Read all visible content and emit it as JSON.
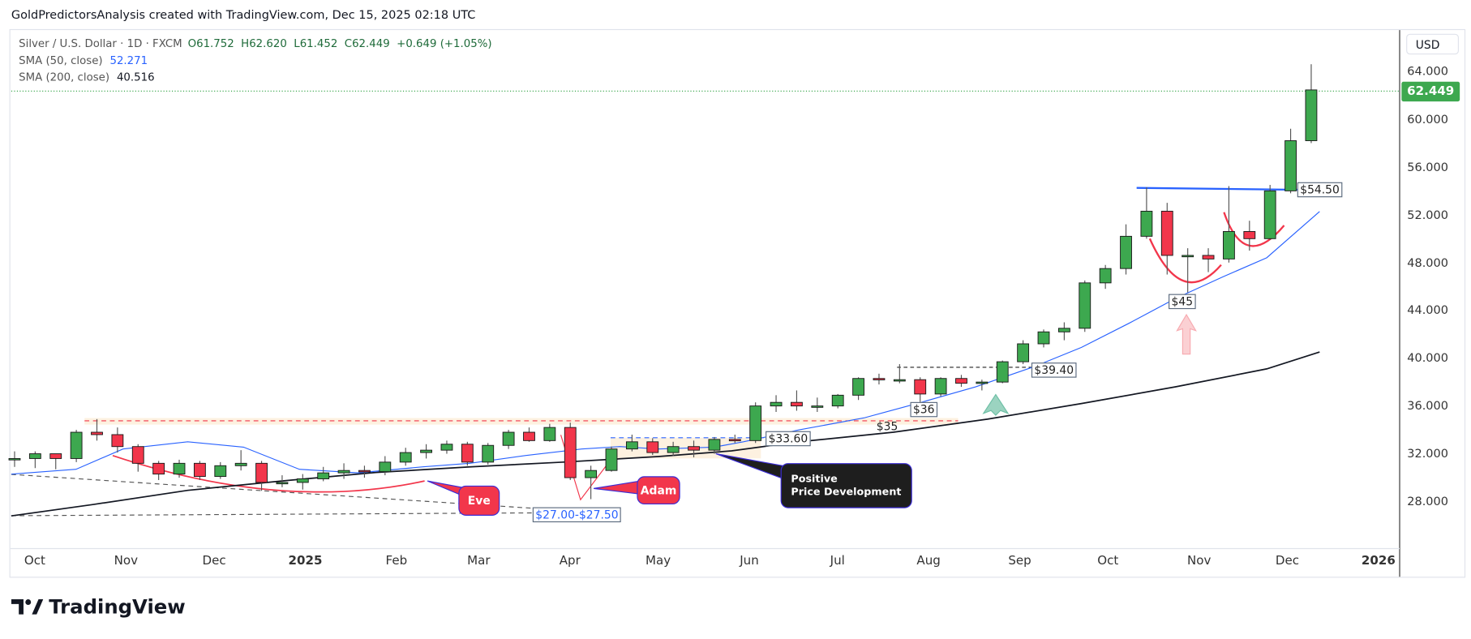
{
  "credit": "GoldPredictorsAnalysis created with TradingView.com, Dec 15, 2025 02:18 UTC",
  "legend": {
    "symbol": "Silver / U.S. Dollar · 1D · FXCM",
    "ohlc": "O61.752  H62.620  L61.452  C62.449  +0.649 (+1.05%)",
    "sma50_label": "SMA (50, close)",
    "sma50_value": "52.271",
    "sma200_label": "SMA (200, close)",
    "sma200_value": "40.516"
  },
  "currency": "USD",
  "last_price": "62.449",
  "colors": {
    "up": "#3da84f",
    "down": "#f2364b",
    "sma50": "#2962ff",
    "sma200": "#131722",
    "last_price": "#3da84f"
  },
  "chart_data": {
    "type": "candlestick",
    "interval_shown": "1D (approximated as weekly OHLC)",
    "ylim": [
      25,
      66
    ],
    "y_ticks": [
      "64.000",
      "60.000",
      "56.000",
      "52.000",
      "48.000",
      "44.000",
      "40.000",
      "36.000",
      "32.000",
      "28.000"
    ],
    "y_tick_values": [
      64,
      60,
      56,
      52,
      48,
      44,
      40,
      36,
      32,
      28
    ],
    "x_ticks": [
      {
        "label": "Oct",
        "date": "2024-10-01"
      },
      {
        "label": "Nov",
        "date": "2024-11-01"
      },
      {
        "label": "Dec",
        "date": "2024-12-01"
      },
      {
        "label": "2025",
        "date": "2025-01-01",
        "bold": true
      },
      {
        "label": "Feb",
        "date": "2025-02-01"
      },
      {
        "label": "Mar",
        "date": "2025-03-01"
      },
      {
        "label": "Apr",
        "date": "2025-04-01"
      },
      {
        "label": "May",
        "date": "2025-05-01"
      },
      {
        "label": "Jun",
        "date": "2025-06-01"
      },
      {
        "label": "Jul",
        "date": "2025-07-01"
      },
      {
        "label": "Aug",
        "date": "2025-08-01"
      },
      {
        "label": "Sep",
        "date": "2025-09-01"
      },
      {
        "label": "Oct",
        "date": "2025-10-01"
      },
      {
        "label": "Nov",
        "date": "2025-11-01"
      },
      {
        "label": "Dec",
        "date": "2025-12-01"
      },
      {
        "label": "2026",
        "date": "2026-01-01",
        "bold": true
      }
    ],
    "candles": [
      [
        "2024-09-27",
        31.5,
        32.2,
        30.9,
        31.6
      ],
      [
        "2024-10-04",
        31.6,
        32.2,
        30.8,
        32.0
      ],
      [
        "2024-10-11",
        32.0,
        32.0,
        30.7,
        31.6
      ],
      [
        "2024-10-18",
        31.6,
        34.0,
        31.3,
        33.8
      ],
      [
        "2024-10-25",
        33.8,
        34.9,
        33.1,
        33.6
      ],
      [
        "2024-11-01",
        33.6,
        34.2,
        32.1,
        32.6
      ],
      [
        "2024-11-08",
        32.6,
        32.8,
        30.5,
        31.2
      ],
      [
        "2024-11-15",
        31.2,
        31.4,
        29.8,
        30.3
      ],
      [
        "2024-11-22",
        30.3,
        31.5,
        30.0,
        31.2
      ],
      [
        "2024-11-29",
        31.2,
        31.4,
        29.8,
        30.1
      ],
      [
        "2024-12-06",
        30.1,
        31.3,
        29.9,
        31.0
      ],
      [
        "2024-12-13",
        31.0,
        32.3,
        30.6,
        31.2
      ],
      [
        "2024-12-20",
        31.2,
        31.4,
        28.9,
        29.6
      ],
      [
        "2024-12-27",
        29.6,
        30.2,
        29.2,
        29.6
      ],
      [
        "2025-01-03",
        29.6,
        30.3,
        29.0,
        29.9
      ],
      [
        "2025-01-10",
        29.9,
        30.9,
        29.7,
        30.4
      ],
      [
        "2025-01-17",
        30.4,
        31.2,
        29.9,
        30.6
      ],
      [
        "2025-01-24",
        30.6,
        31.0,
        30.0,
        30.5
      ],
      [
        "2025-01-31",
        30.5,
        31.8,
        30.2,
        31.3
      ],
      [
        "2025-02-07",
        31.3,
        32.5,
        31.0,
        32.1
      ],
      [
        "2025-02-14",
        32.1,
        32.8,
        31.6,
        32.3
      ],
      [
        "2025-02-21",
        32.3,
        33.1,
        32.0,
        32.8
      ],
      [
        "2025-02-28",
        32.8,
        33.0,
        31.0,
        31.3
      ],
      [
        "2025-03-07",
        31.3,
        32.9,
        31.1,
        32.7
      ],
      [
        "2025-03-14",
        32.7,
        34.0,
        32.4,
        33.8
      ],
      [
        "2025-03-21",
        33.8,
        34.2,
        33.0,
        33.1
      ],
      [
        "2025-03-28",
        33.1,
        34.5,
        33.0,
        34.2
      ],
      [
        "2025-04-04",
        34.2,
        34.6,
        29.8,
        30.0
      ],
      [
        "2025-04-11",
        30.0,
        31.0,
        28.2,
        30.6
      ],
      [
        "2025-04-18",
        30.6,
        32.6,
        30.5,
        32.4
      ],
      [
        "2025-04-25",
        32.4,
        33.6,
        32.2,
        33.0
      ],
      [
        "2025-05-02",
        33.0,
        33.3,
        31.9,
        32.1
      ],
      [
        "2025-05-09",
        32.1,
        33.0,
        31.8,
        32.6
      ],
      [
        "2025-05-16",
        32.6,
        33.1,
        31.7,
        32.3
      ],
      [
        "2025-05-23",
        32.3,
        33.4,
        32.0,
        33.2
      ],
      [
        "2025-05-30",
        33.2,
        33.6,
        32.9,
        33.1
      ],
      [
        "2025-06-06",
        33.1,
        36.3,
        32.9,
        36.0
      ],
      [
        "2025-06-13",
        36.0,
        36.9,
        35.5,
        36.3
      ],
      [
        "2025-06-20",
        36.3,
        37.3,
        35.6,
        36.0
      ],
      [
        "2025-06-27",
        36.0,
        36.7,
        35.5,
        36.0
      ],
      [
        "2025-07-04",
        36.0,
        37.0,
        35.8,
        36.9
      ],
      [
        "2025-07-11",
        36.9,
        38.4,
        36.5,
        38.3
      ],
      [
        "2025-07-18",
        38.3,
        38.7,
        37.8,
        38.2
      ],
      [
        "2025-07-25",
        38.2,
        39.5,
        37.9,
        38.2
      ],
      [
        "2025-08-01",
        38.2,
        38.4,
        36.2,
        37.0
      ],
      [
        "2025-08-08",
        37.0,
        38.4,
        36.8,
        38.3
      ],
      [
        "2025-08-15",
        38.3,
        38.6,
        37.6,
        37.9
      ],
      [
        "2025-08-22",
        37.9,
        38.2,
        37.3,
        38.0
      ],
      [
        "2025-08-29",
        38.0,
        39.8,
        37.9,
        39.7
      ],
      [
        "2025-09-05",
        39.7,
        41.5,
        39.5,
        41.2
      ],
      [
        "2025-09-12",
        41.2,
        42.4,
        40.9,
        42.2
      ],
      [
        "2025-09-19",
        42.2,
        43.0,
        41.5,
        42.5
      ],
      [
        "2025-09-26",
        42.5,
        46.5,
        42.2,
        46.3
      ],
      [
        "2025-10-03",
        46.3,
        47.8,
        45.8,
        47.5
      ],
      [
        "2025-10-10",
        47.5,
        51.2,
        47.0,
        50.2
      ],
      [
        "2025-10-17",
        50.2,
        54.3,
        50.0,
        52.3
      ],
      [
        "2025-10-24",
        52.3,
        53.0,
        47.0,
        48.6
      ],
      [
        "2025-10-31",
        48.6,
        49.2,
        45.5,
        48.6
      ],
      [
        "2025-11-07",
        48.6,
        49.2,
        47.2,
        48.3
      ],
      [
        "2025-11-14",
        48.3,
        54.4,
        48.0,
        50.6
      ],
      [
        "2025-11-21",
        50.6,
        51.5,
        49.0,
        50.0
      ],
      [
        "2025-11-28",
        50.0,
        54.5,
        49.9,
        54.0
      ],
      [
        "2025-12-05",
        54.0,
        59.2,
        53.8,
        58.2
      ],
      [
        "2025-12-12",
        58.2,
        64.6,
        58.0,
        62.449
      ]
    ],
    "series": [
      {
        "name": "SMA (50, close)",
        "points": [
          [
            "2024-09-23",
            30.3
          ],
          [
            "2024-10-15",
            30.7
          ],
          [
            "2024-10-31",
            32.4
          ],
          [
            "2024-11-22",
            33.0
          ],
          [
            "2024-12-11",
            32.55
          ],
          [
            "2024-12-30",
            30.7
          ],
          [
            "2025-01-19",
            30.4
          ],
          [
            "2025-02-10",
            30.9
          ],
          [
            "2025-02-26",
            31.2
          ],
          [
            "2025-03-17",
            31.85
          ],
          [
            "2025-04-05",
            32.4
          ],
          [
            "2025-04-18",
            32.6
          ],
          [
            "2025-05-01",
            32.4
          ],
          [
            "2025-05-20",
            32.55
          ],
          [
            "2025-05-30",
            33.0
          ],
          [
            "2025-06-18",
            34.0
          ],
          [
            "2025-07-10",
            35.0
          ],
          [
            "2025-07-28",
            36.2
          ],
          [
            "2025-08-17",
            37.6
          ],
          [
            "2025-09-06",
            39.3
          ],
          [
            "2025-09-22",
            40.9
          ],
          [
            "2025-10-08",
            42.9
          ],
          [
            "2025-10-24",
            45.0
          ],
          [
            "2025-11-09",
            46.8
          ],
          [
            "2025-11-24",
            48.4
          ],
          [
            "2025-12-12",
            52.271
          ]
        ]
      },
      {
        "name": "SMA (200, close)",
        "points": [
          [
            "2024-09-23",
            26.8
          ],
          [
            "2024-10-21",
            27.76
          ],
          [
            "2024-11-22",
            28.94
          ],
          [
            "2024-12-24",
            29.72
          ],
          [
            "2025-01-25",
            30.43
          ],
          [
            "2025-02-26",
            30.9
          ],
          [
            "2025-03-30",
            31.3
          ],
          [
            "2025-05-01",
            31.77
          ],
          [
            "2025-05-26",
            32.24
          ],
          [
            "2025-06-18",
            33.0
          ],
          [
            "2025-07-20",
            33.8
          ],
          [
            "2025-08-21",
            34.9
          ],
          [
            "2025-09-22",
            36.2
          ],
          [
            "2025-10-24",
            37.6
          ],
          [
            "2025-11-24",
            39.1
          ],
          [
            "2025-12-12",
            40.516
          ]
        ]
      }
    ],
    "annotations": {
      "eve": "Eve",
      "adam": "Adam",
      "positive_line1": "Positive",
      "positive_line2": "Price Development",
      "range_27": "$27.00-$27.50",
      "level_3360": "$33.60",
      "level_35": "$35",
      "level_36": "$36",
      "level_3940": "$39.40",
      "level_45": "$45",
      "level_5450": "$54.50"
    }
  },
  "branding": {
    "logo_text": "TradingView"
  }
}
